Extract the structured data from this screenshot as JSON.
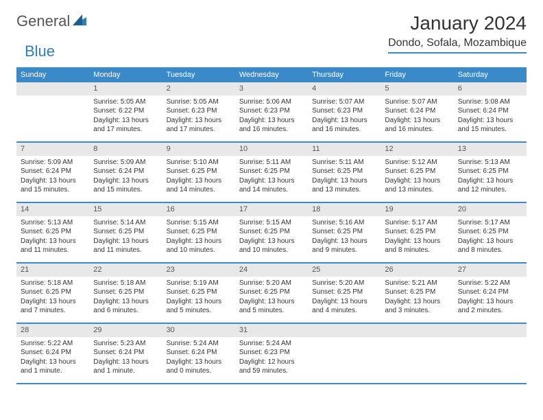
{
  "logo": {
    "general": "General",
    "blue": "Blue"
  },
  "title": "January 2024",
  "location": "Dondo, Sofala, Mozambique",
  "colors": {
    "header_bg": "#3a89c9",
    "daynum_bg": "#e8e8e8",
    "row_border": "#3a89c9",
    "logo_blue": "#2a7fbf"
  },
  "days_of_week": [
    "Sunday",
    "Monday",
    "Tuesday",
    "Wednesday",
    "Thursday",
    "Friday",
    "Saturday"
  ],
  "weeks": [
    [
      {
        "n": "",
        "sunrise": "",
        "sunset": "",
        "daylight1": "",
        "daylight2": ""
      },
      {
        "n": "1",
        "sunrise": "Sunrise: 5:05 AM",
        "sunset": "Sunset: 6:22 PM",
        "daylight1": "Daylight: 13 hours",
        "daylight2": "and 17 minutes."
      },
      {
        "n": "2",
        "sunrise": "Sunrise: 5:05 AM",
        "sunset": "Sunset: 6:23 PM",
        "daylight1": "Daylight: 13 hours",
        "daylight2": "and 17 minutes."
      },
      {
        "n": "3",
        "sunrise": "Sunrise: 5:06 AM",
        "sunset": "Sunset: 6:23 PM",
        "daylight1": "Daylight: 13 hours",
        "daylight2": "and 16 minutes."
      },
      {
        "n": "4",
        "sunrise": "Sunrise: 5:07 AM",
        "sunset": "Sunset: 6:23 PM",
        "daylight1": "Daylight: 13 hours",
        "daylight2": "and 16 minutes."
      },
      {
        "n": "5",
        "sunrise": "Sunrise: 5:07 AM",
        "sunset": "Sunset: 6:24 PM",
        "daylight1": "Daylight: 13 hours",
        "daylight2": "and 16 minutes."
      },
      {
        "n": "6",
        "sunrise": "Sunrise: 5:08 AM",
        "sunset": "Sunset: 6:24 PM",
        "daylight1": "Daylight: 13 hours",
        "daylight2": "and 15 minutes."
      }
    ],
    [
      {
        "n": "7",
        "sunrise": "Sunrise: 5:09 AM",
        "sunset": "Sunset: 6:24 PM",
        "daylight1": "Daylight: 13 hours",
        "daylight2": "and 15 minutes."
      },
      {
        "n": "8",
        "sunrise": "Sunrise: 5:09 AM",
        "sunset": "Sunset: 6:24 PM",
        "daylight1": "Daylight: 13 hours",
        "daylight2": "and 15 minutes."
      },
      {
        "n": "9",
        "sunrise": "Sunrise: 5:10 AM",
        "sunset": "Sunset: 6:25 PM",
        "daylight1": "Daylight: 13 hours",
        "daylight2": "and 14 minutes."
      },
      {
        "n": "10",
        "sunrise": "Sunrise: 5:11 AM",
        "sunset": "Sunset: 6:25 PM",
        "daylight1": "Daylight: 13 hours",
        "daylight2": "and 14 minutes."
      },
      {
        "n": "11",
        "sunrise": "Sunrise: 5:11 AM",
        "sunset": "Sunset: 6:25 PM",
        "daylight1": "Daylight: 13 hours",
        "daylight2": "and 13 minutes."
      },
      {
        "n": "12",
        "sunrise": "Sunrise: 5:12 AM",
        "sunset": "Sunset: 6:25 PM",
        "daylight1": "Daylight: 13 hours",
        "daylight2": "and 13 minutes."
      },
      {
        "n": "13",
        "sunrise": "Sunrise: 5:13 AM",
        "sunset": "Sunset: 6:25 PM",
        "daylight1": "Daylight: 13 hours",
        "daylight2": "and 12 minutes."
      }
    ],
    [
      {
        "n": "14",
        "sunrise": "Sunrise: 5:13 AM",
        "sunset": "Sunset: 6:25 PM",
        "daylight1": "Daylight: 13 hours",
        "daylight2": "and 11 minutes."
      },
      {
        "n": "15",
        "sunrise": "Sunrise: 5:14 AM",
        "sunset": "Sunset: 6:25 PM",
        "daylight1": "Daylight: 13 hours",
        "daylight2": "and 11 minutes."
      },
      {
        "n": "16",
        "sunrise": "Sunrise: 5:15 AM",
        "sunset": "Sunset: 6:25 PM",
        "daylight1": "Daylight: 13 hours",
        "daylight2": "and 10 minutes."
      },
      {
        "n": "17",
        "sunrise": "Sunrise: 5:15 AM",
        "sunset": "Sunset: 6:25 PM",
        "daylight1": "Daylight: 13 hours",
        "daylight2": "and 10 minutes."
      },
      {
        "n": "18",
        "sunrise": "Sunrise: 5:16 AM",
        "sunset": "Sunset: 6:25 PM",
        "daylight1": "Daylight: 13 hours",
        "daylight2": "and 9 minutes."
      },
      {
        "n": "19",
        "sunrise": "Sunrise: 5:17 AM",
        "sunset": "Sunset: 6:25 PM",
        "daylight1": "Daylight: 13 hours",
        "daylight2": "and 8 minutes."
      },
      {
        "n": "20",
        "sunrise": "Sunrise: 5:17 AM",
        "sunset": "Sunset: 6:25 PM",
        "daylight1": "Daylight: 13 hours",
        "daylight2": "and 8 minutes."
      }
    ],
    [
      {
        "n": "21",
        "sunrise": "Sunrise: 5:18 AM",
        "sunset": "Sunset: 6:25 PM",
        "daylight1": "Daylight: 13 hours",
        "daylight2": "and 7 minutes."
      },
      {
        "n": "22",
        "sunrise": "Sunrise: 5:18 AM",
        "sunset": "Sunset: 6:25 PM",
        "daylight1": "Daylight: 13 hours",
        "daylight2": "and 6 minutes."
      },
      {
        "n": "23",
        "sunrise": "Sunrise: 5:19 AM",
        "sunset": "Sunset: 6:25 PM",
        "daylight1": "Daylight: 13 hours",
        "daylight2": "and 5 minutes."
      },
      {
        "n": "24",
        "sunrise": "Sunrise: 5:20 AM",
        "sunset": "Sunset: 6:25 PM",
        "daylight1": "Daylight: 13 hours",
        "daylight2": "and 5 minutes."
      },
      {
        "n": "25",
        "sunrise": "Sunrise: 5:20 AM",
        "sunset": "Sunset: 6:25 PM",
        "daylight1": "Daylight: 13 hours",
        "daylight2": "and 4 minutes."
      },
      {
        "n": "26",
        "sunrise": "Sunrise: 5:21 AM",
        "sunset": "Sunset: 6:25 PM",
        "daylight1": "Daylight: 13 hours",
        "daylight2": "and 3 minutes."
      },
      {
        "n": "27",
        "sunrise": "Sunrise: 5:22 AM",
        "sunset": "Sunset: 6:24 PM",
        "daylight1": "Daylight: 13 hours",
        "daylight2": "and 2 minutes."
      }
    ],
    [
      {
        "n": "28",
        "sunrise": "Sunrise: 5:22 AM",
        "sunset": "Sunset: 6:24 PM",
        "daylight1": "Daylight: 13 hours",
        "daylight2": "and 1 minute."
      },
      {
        "n": "29",
        "sunrise": "Sunrise: 5:23 AM",
        "sunset": "Sunset: 6:24 PM",
        "daylight1": "Daylight: 13 hours",
        "daylight2": "and 1 minute."
      },
      {
        "n": "30",
        "sunrise": "Sunrise: 5:24 AM",
        "sunset": "Sunset: 6:24 PM",
        "daylight1": "Daylight: 13 hours",
        "daylight2": "and 0 minutes."
      },
      {
        "n": "31",
        "sunrise": "Sunrise: 5:24 AM",
        "sunset": "Sunset: 6:23 PM",
        "daylight1": "Daylight: 12 hours",
        "daylight2": "and 59 minutes."
      },
      {
        "n": "",
        "sunrise": "",
        "sunset": "",
        "daylight1": "",
        "daylight2": ""
      },
      {
        "n": "",
        "sunrise": "",
        "sunset": "",
        "daylight1": "",
        "daylight2": ""
      },
      {
        "n": "",
        "sunrise": "",
        "sunset": "",
        "daylight1": "",
        "daylight2": ""
      }
    ]
  ]
}
